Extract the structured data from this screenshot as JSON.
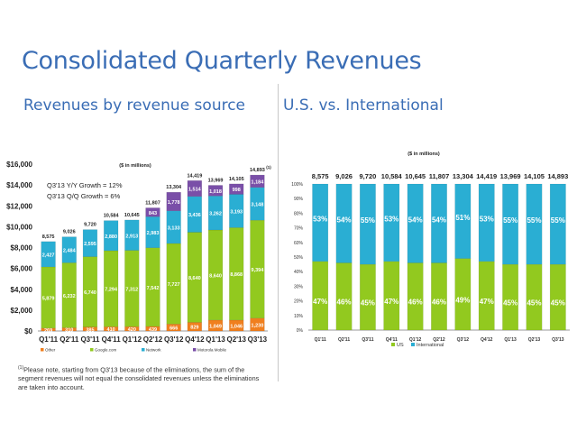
{
  "page": {
    "title": "Consolidated Quarterly Revenues",
    "left_subtitle": "Revenues by revenue source",
    "right_subtitle": "U.S. vs. International",
    "footnote_marker": "(1)",
    "footnote": "Please note, starting from Q3'13 because of the eliminations, the sum of the segment revenues will not equal the consolidated revenues unless the eliminations are taken into account."
  },
  "colors": {
    "other": "#f07f1e",
    "google": "#92c91f",
    "network": "#2aaed3",
    "motorola": "#7a4fa8",
    "us": "#92c91f",
    "international": "#2aaed3",
    "title": "#3a6db5"
  },
  "chart_data": [
    {
      "type": "bar",
      "stacked": true,
      "title": "Revenues by revenue source",
      "units_note": "($ in millions)",
      "annotations": [
        "Q3'13 Y/Y Growth = 12%",
        "Q3'13 Q/Q Growth = 6%"
      ],
      "total_footnote_marker": "(1)",
      "categories": [
        "Q1'11",
        "Q2'11",
        "Q3'11",
        "Q4'11",
        "Q1'12",
        "Q2'12",
        "Q3'12",
        "Q4'12",
        "Q1'13",
        "Q2'13",
        "Q3'13"
      ],
      "totals": [
        8575,
        9026,
        9720,
        10584,
        10645,
        11807,
        13304,
        14419,
        13969,
        14105,
        14893
      ],
      "total_labels": [
        "8,575",
        "9,026",
        "9,720",
        "10,584",
        "10,645",
        "11,807",
        "13,304",
        "14,419",
        "13,969",
        "14,105",
        "14,893"
      ],
      "series": [
        {
          "name": "Other",
          "color_key": "other",
          "values": [
            269,
            310,
            385,
            410,
            420,
            439,
            666,
            829,
            1049,
            1046,
            1230
          ],
          "labels": [
            "269",
            "310",
            "385",
            "410",
            "420",
            "439",
            "666",
            "829",
            "1,049",
            "1,046",
            "1,230"
          ]
        },
        {
          "name": "Google.com",
          "color_key": "google",
          "values": [
            5879,
            6232,
            6740,
            7294,
            7312,
            7542,
            7727,
            8640,
            8640,
            8868,
            9394
          ],
          "labels": [
            "5,879",
            "6,232",
            "6,740",
            "7,294",
            "7,312",
            "7,542",
            "7,727",
            "8,640",
            "8,640",
            "8,868",
            "9,394"
          ]
        },
        {
          "name": "Network",
          "color_key": "network",
          "values": [
            2427,
            2484,
            2595,
            2880,
            2913,
            2983,
            3133,
            3436,
            3262,
            3193,
            3148
          ],
          "labels": [
            "2,427",
            "2,484",
            "2,595",
            "2,880",
            "2,913",
            "2,983",
            "3,133",
            "3,436",
            "3,262",
            "3,193",
            "3,148"
          ]
        },
        {
          "name": "Motorola Mobile",
          "color_key": "motorola",
          "values": [
            0,
            0,
            0,
            0,
            0,
            843,
            1778,
            1514,
            1018,
            998,
            1184
          ],
          "labels": [
            "",
            "",
            "",
            "",
            "",
            "843",
            "1,778",
            "1,514",
            "1,018",
            "998",
            "1,184"
          ]
        }
      ],
      "yaxis": {
        "min": 0,
        "max": 16000,
        "step": 2000,
        "tick_labels": [
          "$0",
          "$2,000",
          "$4,000",
          "$6,000",
          "$8,000",
          "$10,000",
          "$12,000",
          "$14,000",
          "$16,000"
        ]
      },
      "legend": {
        "position": "bottom",
        "items": [
          "Other",
          "Google.com",
          "Network",
          "Motorola Mobile"
        ]
      }
    },
    {
      "type": "bar",
      "stacked": true,
      "percent": true,
      "title": "U.S. vs. International",
      "units_note": "($ in millions)",
      "categories": [
        "Q1'11",
        "Q2'11",
        "Q3'11",
        "Q4'11",
        "Q1'12",
        "Q2'12",
        "Q3'12",
        "Q4'12",
        "Q1'13",
        "Q2'13",
        "Q3'13"
      ],
      "total_labels": [
        "8,575",
        "9,026",
        "9,720",
        "10,584",
        "10,645",
        "11,807",
        "13,304",
        "14,419",
        "13,969",
        "14,105",
        "14,893"
      ],
      "series": [
        {
          "name": "US",
          "color_key": "us",
          "values": [
            47,
            46,
            45,
            47,
            46,
            46,
            49,
            47,
            45,
            45,
            45
          ]
        },
        {
          "name": "International",
          "color_key": "international",
          "values": [
            53,
            54,
            55,
            53,
            54,
            54,
            51,
            53,
            55,
            55,
            55
          ]
        }
      ],
      "yaxis": {
        "min": 0,
        "max": 100,
        "step": 10,
        "tick_labels": [
          "0%",
          "10%",
          "20%",
          "30%",
          "40%",
          "50%",
          "60%",
          "70%",
          "80%",
          "90%",
          "100%"
        ]
      },
      "legend": {
        "position": "bottom",
        "items": [
          "US",
          "International"
        ]
      }
    }
  ]
}
